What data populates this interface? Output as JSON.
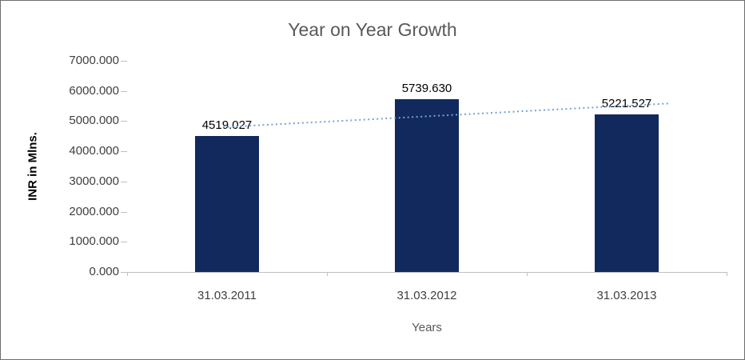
{
  "chart_data": {
    "type": "bar",
    "title": "Year on Year Growth",
    "xlabel": "Years",
    "ylabel": "INR in Mlns.",
    "categories": [
      "31.03.2011",
      "31.03.2012",
      "31.03.2013"
    ],
    "values": [
      4519.027,
      5739.63,
      5221.527
    ],
    "data_labels": [
      "4519.027",
      "5739.630",
      "5221.527"
    ],
    "ylim": [
      0,
      7000
    ],
    "ytick_step": 1000,
    "ytick_labels": [
      "0.000",
      "1000.000",
      "2000.000",
      "3000.000",
      "4000.000",
      "5000.000",
      "6000.000",
      "7000.000"
    ],
    "grid": false,
    "legend": "none",
    "bar_color": "#12295e",
    "axis_color": "#bfbfbf",
    "trendline": {
      "type": "linear",
      "style": "dotted",
      "color": "#74a3d4"
    }
  }
}
